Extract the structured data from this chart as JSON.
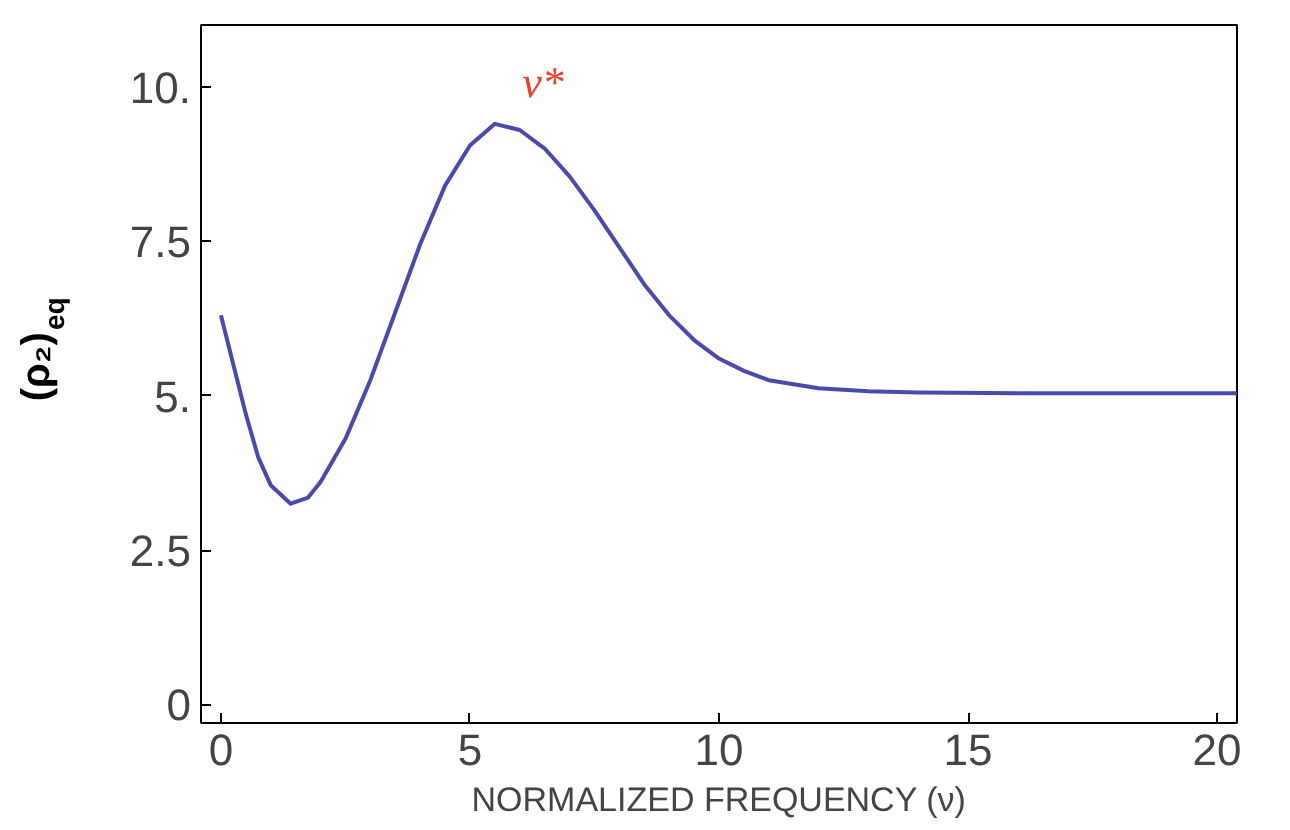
{
  "chart_data": {
    "type": "line",
    "xlabel": "NORMALIZED FREQUENCY (ν)",
    "ylabel": "(ρ₂)$_{eq}$",
    "x": [
      0,
      0.25,
      0.5,
      0.75,
      1.0,
      1.4,
      1.75,
      2.0,
      2.5,
      3.0,
      3.5,
      4.0,
      4.5,
      5.0,
      5.5,
      6.0,
      6.5,
      7.0,
      7.5,
      8.0,
      8.5,
      9.0,
      9.5,
      10,
      10.5,
      11,
      12,
      13,
      14,
      16,
      20.4
    ],
    "series": [
      {
        "color": "#4a4aaa",
        "values": [
          6.3,
          5.5,
          4.7,
          4.0,
          3.55,
          3.25,
          3.35,
          3.6,
          4.3,
          5.25,
          6.35,
          7.45,
          8.4,
          9.05,
          9.4,
          9.3,
          9.0,
          8.55,
          8.0,
          7.4,
          6.8,
          6.3,
          5.9,
          5.6,
          5.4,
          5.25,
          5.12,
          5.07,
          5.05,
          5.04,
          5.04
        ]
      }
    ],
    "annotations": [
      "ν*"
    ],
    "xlim": [
      -0.4,
      20.4
    ],
    "ylim": [
      -0.3,
      11.0
    ],
    "xticks": [
      0,
      5,
      10,
      15,
      20
    ],
    "yticks": [
      {
        "value": 0,
        "label": "0"
      },
      {
        "value": 2.5,
        "label": "2.5"
      },
      {
        "value": 5,
        "label": "5."
      },
      {
        "value": 7.5,
        "label": "7.5"
      },
      {
        "value": 10,
        "label": "10."
      }
    ],
    "grid": false,
    "marker": "none",
    "line_style": "solid"
  }
}
